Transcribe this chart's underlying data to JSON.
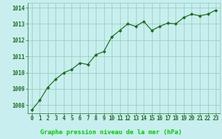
{
  "x": [
    0,
    1,
    2,
    3,
    4,
    5,
    6,
    7,
    8,
    9,
    10,
    11,
    12,
    13,
    14,
    15,
    16,
    17,
    18,
    19,
    20,
    21,
    22,
    23
  ],
  "y": [
    1007.7,
    1008.3,
    1009.1,
    1009.6,
    1010.0,
    1010.2,
    1010.6,
    1010.5,
    1011.1,
    1011.3,
    1012.2,
    1012.6,
    1013.0,
    1012.85,
    1013.15,
    1012.6,
    1012.85,
    1013.05,
    1013.0,
    1013.4,
    1013.6,
    1013.5,
    1013.6,
    1013.85
  ],
  "line_color": "#1a6e1a",
  "marker": "D",
  "marker_size": 2.2,
  "bg_color": "#c8eef0",
  "grid_color": "#88ccaa",
  "label_bg_color": "#006600",
  "xlabel": "Graphe pression niveau de la mer (hPa)",
  "xlabel_color": "#00cc00",
  "xlabel_fontsize": 6.5,
  "tick_color": "#1a6e1a",
  "tick_fontsize": 5.5,
  "ylim": [
    1007.5,
    1014.3
  ],
  "yticks": [
    1008,
    1009,
    1010,
    1011,
    1012,
    1013,
    1014
  ],
  "xlim": [
    -0.5,
    23.5
  ],
  "xticks": [
    0,
    1,
    2,
    3,
    4,
    5,
    6,
    7,
    8,
    9,
    10,
    11,
    12,
    13,
    14,
    15,
    16,
    17,
    18,
    19,
    20,
    21,
    22,
    23
  ]
}
